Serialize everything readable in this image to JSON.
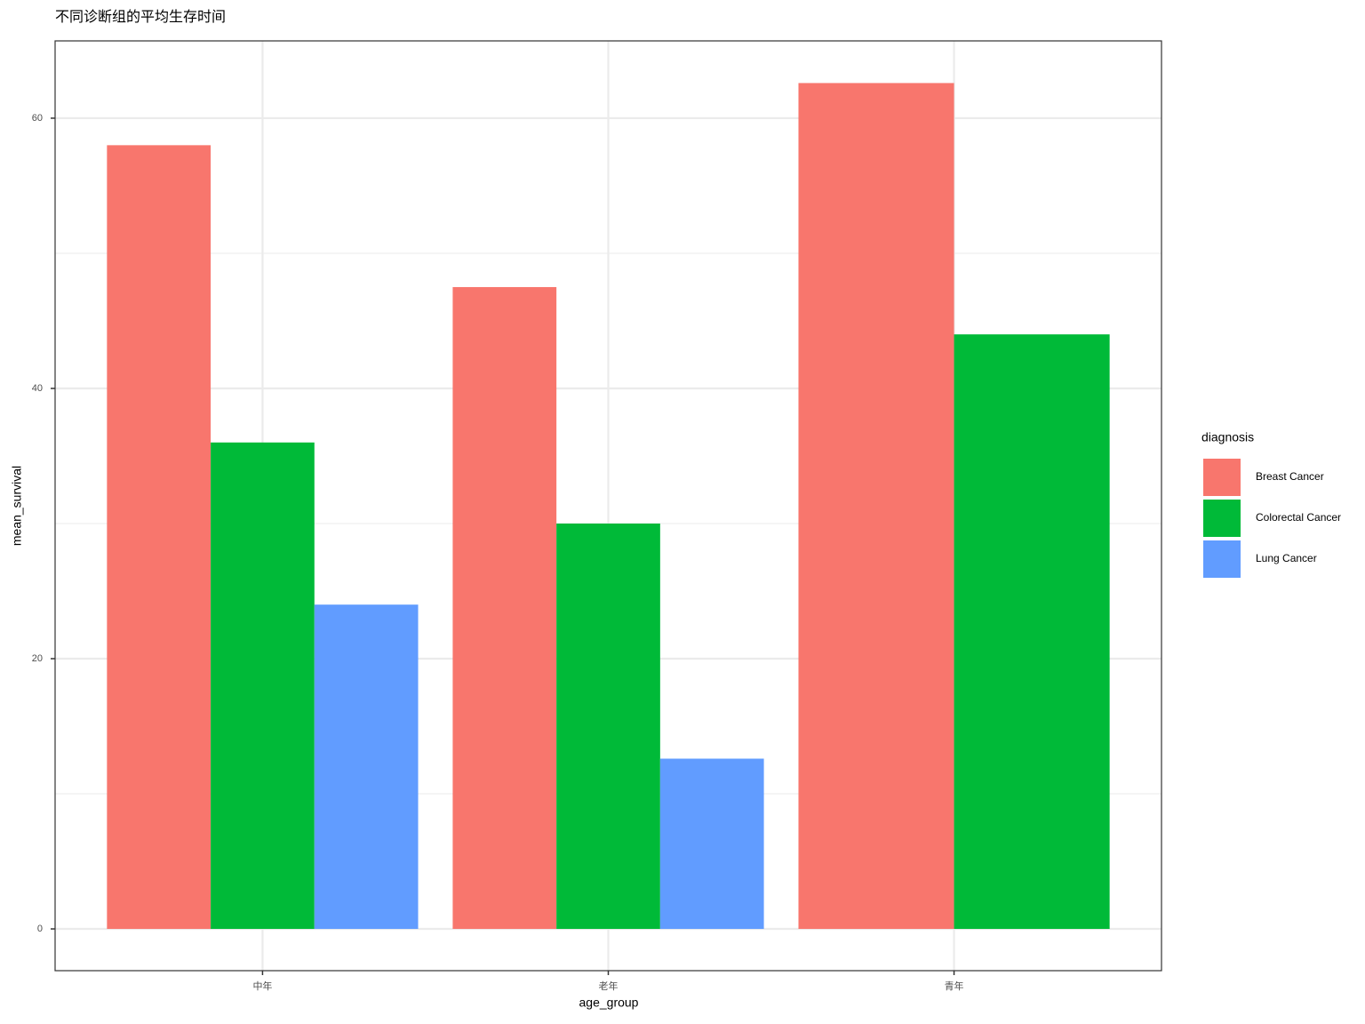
{
  "chart_data": {
    "type": "bar",
    "title": "不同诊断组的平均生存时间",
    "x_label": "age_group",
    "y_label": "mean_survival",
    "categories": [
      "中年",
      "老年",
      "青年"
    ],
    "series": [
      {
        "name": "Breast Cancer",
        "color": "#F8766D",
        "values": [
          58.0,
          47.5,
          62.6
        ]
      },
      {
        "name": "Colorectal Cancer",
        "color": "#00BA38",
        "values": [
          36.0,
          30.0,
          44.0
        ]
      },
      {
        "name": "Lung Cancer",
        "color": "#619CFF",
        "values": [
          24.0,
          12.6,
          null
        ]
      }
    ],
    "legend_title": "diagnosis",
    "ylim": [
      -3.09,
      65.72
    ],
    "yticks": [
      0,
      20,
      40,
      60
    ],
    "grid": true,
    "legend": "right"
  }
}
